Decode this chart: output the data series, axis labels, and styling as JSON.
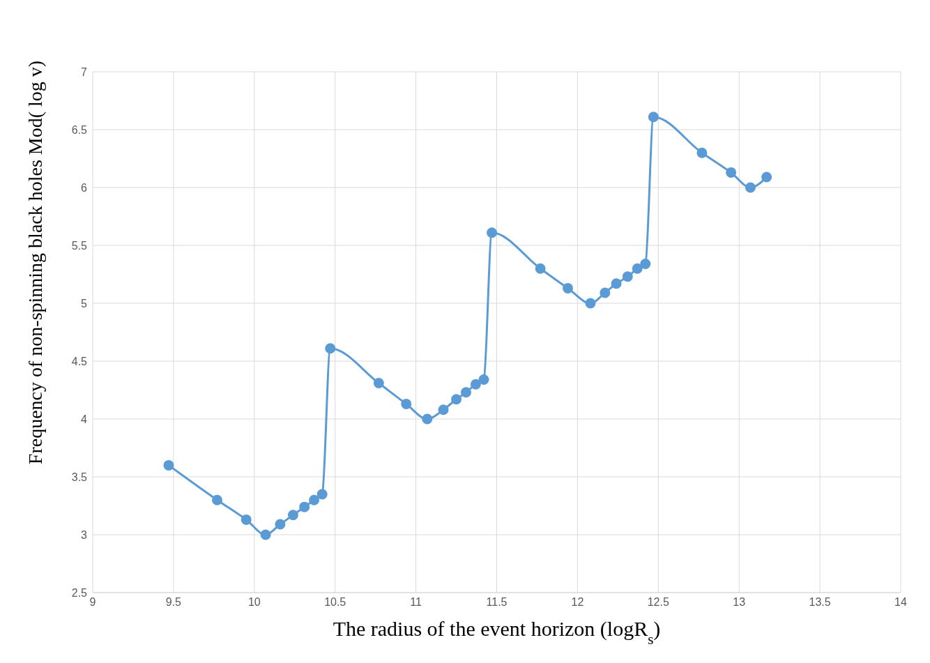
{
  "chart_data": {
    "type": "line",
    "xlabel": "The radius of the event horizon (logR$_{s}$)",
    "ylabel": "Frequency of non-spinning black holes Mod( log v)",
    "x": [
      9.47,
      9.77,
      9.95,
      10.07,
      10.16,
      10.24,
      10.31,
      10.37,
      10.42,
      10.47,
      10.77,
      10.94,
      11.07,
      11.17,
      11.25,
      11.31,
      11.37,
      11.42,
      11.47,
      11.77,
      11.94,
      12.08,
      12.17,
      12.24,
      12.31,
      12.37,
      12.42,
      12.47,
      12.77,
      12.95,
      13.07,
      13.17
    ],
    "series": [
      {
        "color": "#5b9bd5",
        "values": [
          3.6,
          3.3,
          3.13,
          3.0,
          3.09,
          3.17,
          3.24,
          3.3,
          3.35,
          4.61,
          4.31,
          4.13,
          4.0,
          4.08,
          4.17,
          4.23,
          4.3,
          4.34,
          5.61,
          5.3,
          5.13,
          5.0,
          5.09,
          5.17,
          5.23,
          5.3,
          5.34,
          6.61,
          6.3,
          6.13,
          6.0,
          6.09
        ]
      }
    ],
    "xlim": [
      9,
      14
    ],
    "xticks": [
      9,
      9.5,
      10,
      10.5,
      11,
      11.5,
      12,
      12.5,
      13,
      13.5,
      14
    ],
    "ylim": [
      2.5,
      7
    ],
    "yticks": [
      2.5,
      3,
      3.5,
      4,
      4.5,
      5,
      5.5,
      6,
      6.5,
      7
    ],
    "grid": true,
    "marker": "circle",
    "line_style": "solid",
    "legend": false
  }
}
